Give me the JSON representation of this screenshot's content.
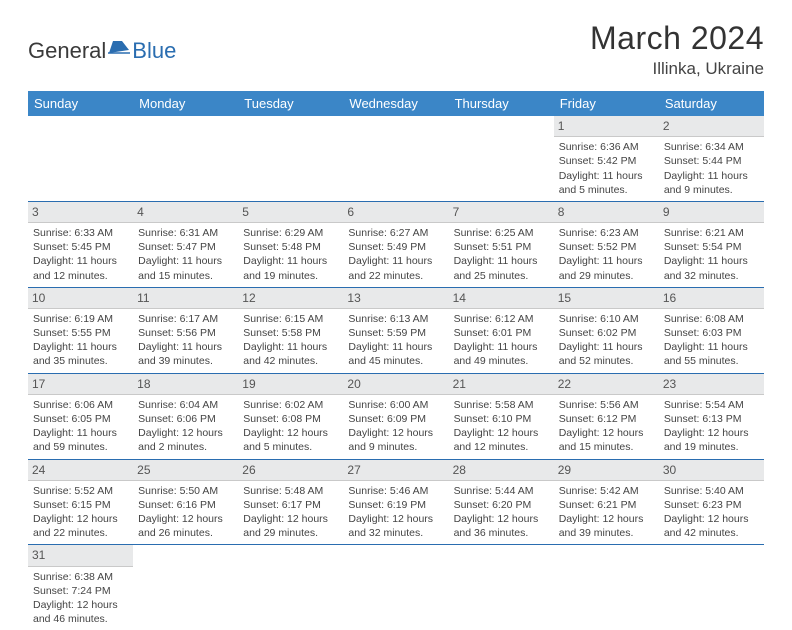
{
  "brand": {
    "part1": "General",
    "part2": "Blue"
  },
  "title": "March 2024",
  "location": "Illinka, Ukraine",
  "colors": {
    "header_bg": "#3b86c7",
    "row_divider": "#2a6db0",
    "daynum_bg": "#e8e9ea",
    "text": "#444444",
    "brand_blue": "#2a6db0"
  },
  "weekdays": [
    "Sunday",
    "Monday",
    "Tuesday",
    "Wednesday",
    "Thursday",
    "Friday",
    "Saturday"
  ],
  "weeks": [
    [
      {
        "empty": true
      },
      {
        "empty": true
      },
      {
        "empty": true
      },
      {
        "empty": true
      },
      {
        "empty": true
      },
      {
        "day": "1",
        "sunrise": "Sunrise: 6:36 AM",
        "sunset": "Sunset: 5:42 PM",
        "daylight1": "Daylight: 11 hours",
        "daylight2": "and 5 minutes."
      },
      {
        "day": "2",
        "sunrise": "Sunrise: 6:34 AM",
        "sunset": "Sunset: 5:44 PM",
        "daylight1": "Daylight: 11 hours",
        "daylight2": "and 9 minutes."
      }
    ],
    [
      {
        "day": "3",
        "sunrise": "Sunrise: 6:33 AM",
        "sunset": "Sunset: 5:45 PM",
        "daylight1": "Daylight: 11 hours",
        "daylight2": "and 12 minutes."
      },
      {
        "day": "4",
        "sunrise": "Sunrise: 6:31 AM",
        "sunset": "Sunset: 5:47 PM",
        "daylight1": "Daylight: 11 hours",
        "daylight2": "and 15 minutes."
      },
      {
        "day": "5",
        "sunrise": "Sunrise: 6:29 AM",
        "sunset": "Sunset: 5:48 PM",
        "daylight1": "Daylight: 11 hours",
        "daylight2": "and 19 minutes."
      },
      {
        "day": "6",
        "sunrise": "Sunrise: 6:27 AM",
        "sunset": "Sunset: 5:49 PM",
        "daylight1": "Daylight: 11 hours",
        "daylight2": "and 22 minutes."
      },
      {
        "day": "7",
        "sunrise": "Sunrise: 6:25 AM",
        "sunset": "Sunset: 5:51 PM",
        "daylight1": "Daylight: 11 hours",
        "daylight2": "and 25 minutes."
      },
      {
        "day": "8",
        "sunrise": "Sunrise: 6:23 AM",
        "sunset": "Sunset: 5:52 PM",
        "daylight1": "Daylight: 11 hours",
        "daylight2": "and 29 minutes."
      },
      {
        "day": "9",
        "sunrise": "Sunrise: 6:21 AM",
        "sunset": "Sunset: 5:54 PM",
        "daylight1": "Daylight: 11 hours",
        "daylight2": "and 32 minutes."
      }
    ],
    [
      {
        "day": "10",
        "sunrise": "Sunrise: 6:19 AM",
        "sunset": "Sunset: 5:55 PM",
        "daylight1": "Daylight: 11 hours",
        "daylight2": "and 35 minutes."
      },
      {
        "day": "11",
        "sunrise": "Sunrise: 6:17 AM",
        "sunset": "Sunset: 5:56 PM",
        "daylight1": "Daylight: 11 hours",
        "daylight2": "and 39 minutes."
      },
      {
        "day": "12",
        "sunrise": "Sunrise: 6:15 AM",
        "sunset": "Sunset: 5:58 PM",
        "daylight1": "Daylight: 11 hours",
        "daylight2": "and 42 minutes."
      },
      {
        "day": "13",
        "sunrise": "Sunrise: 6:13 AM",
        "sunset": "Sunset: 5:59 PM",
        "daylight1": "Daylight: 11 hours",
        "daylight2": "and 45 minutes."
      },
      {
        "day": "14",
        "sunrise": "Sunrise: 6:12 AM",
        "sunset": "Sunset: 6:01 PM",
        "daylight1": "Daylight: 11 hours",
        "daylight2": "and 49 minutes."
      },
      {
        "day": "15",
        "sunrise": "Sunrise: 6:10 AM",
        "sunset": "Sunset: 6:02 PM",
        "daylight1": "Daylight: 11 hours",
        "daylight2": "and 52 minutes."
      },
      {
        "day": "16",
        "sunrise": "Sunrise: 6:08 AM",
        "sunset": "Sunset: 6:03 PM",
        "daylight1": "Daylight: 11 hours",
        "daylight2": "and 55 minutes."
      }
    ],
    [
      {
        "day": "17",
        "sunrise": "Sunrise: 6:06 AM",
        "sunset": "Sunset: 6:05 PM",
        "daylight1": "Daylight: 11 hours",
        "daylight2": "and 59 minutes."
      },
      {
        "day": "18",
        "sunrise": "Sunrise: 6:04 AM",
        "sunset": "Sunset: 6:06 PM",
        "daylight1": "Daylight: 12 hours",
        "daylight2": "and 2 minutes."
      },
      {
        "day": "19",
        "sunrise": "Sunrise: 6:02 AM",
        "sunset": "Sunset: 6:08 PM",
        "daylight1": "Daylight: 12 hours",
        "daylight2": "and 5 minutes."
      },
      {
        "day": "20",
        "sunrise": "Sunrise: 6:00 AM",
        "sunset": "Sunset: 6:09 PM",
        "daylight1": "Daylight: 12 hours",
        "daylight2": "and 9 minutes."
      },
      {
        "day": "21",
        "sunrise": "Sunrise: 5:58 AM",
        "sunset": "Sunset: 6:10 PM",
        "daylight1": "Daylight: 12 hours",
        "daylight2": "and 12 minutes."
      },
      {
        "day": "22",
        "sunrise": "Sunrise: 5:56 AM",
        "sunset": "Sunset: 6:12 PM",
        "daylight1": "Daylight: 12 hours",
        "daylight2": "and 15 minutes."
      },
      {
        "day": "23",
        "sunrise": "Sunrise: 5:54 AM",
        "sunset": "Sunset: 6:13 PM",
        "daylight1": "Daylight: 12 hours",
        "daylight2": "and 19 minutes."
      }
    ],
    [
      {
        "day": "24",
        "sunrise": "Sunrise: 5:52 AM",
        "sunset": "Sunset: 6:15 PM",
        "daylight1": "Daylight: 12 hours",
        "daylight2": "and 22 minutes."
      },
      {
        "day": "25",
        "sunrise": "Sunrise: 5:50 AM",
        "sunset": "Sunset: 6:16 PM",
        "daylight1": "Daylight: 12 hours",
        "daylight2": "and 26 minutes."
      },
      {
        "day": "26",
        "sunrise": "Sunrise: 5:48 AM",
        "sunset": "Sunset: 6:17 PM",
        "daylight1": "Daylight: 12 hours",
        "daylight2": "and 29 minutes."
      },
      {
        "day": "27",
        "sunrise": "Sunrise: 5:46 AM",
        "sunset": "Sunset: 6:19 PM",
        "daylight1": "Daylight: 12 hours",
        "daylight2": "and 32 minutes."
      },
      {
        "day": "28",
        "sunrise": "Sunrise: 5:44 AM",
        "sunset": "Sunset: 6:20 PM",
        "daylight1": "Daylight: 12 hours",
        "daylight2": "and 36 minutes."
      },
      {
        "day": "29",
        "sunrise": "Sunrise: 5:42 AM",
        "sunset": "Sunset: 6:21 PM",
        "daylight1": "Daylight: 12 hours",
        "daylight2": "and 39 minutes."
      },
      {
        "day": "30",
        "sunrise": "Sunrise: 5:40 AM",
        "sunset": "Sunset: 6:23 PM",
        "daylight1": "Daylight: 12 hours",
        "daylight2": "and 42 minutes."
      }
    ],
    [
      {
        "day": "31",
        "sunrise": "Sunrise: 6:38 AM",
        "sunset": "Sunset: 7:24 PM",
        "daylight1": "Daylight: 12 hours",
        "daylight2": "and 46 minutes."
      },
      {
        "empty": true
      },
      {
        "empty": true
      },
      {
        "empty": true
      },
      {
        "empty": true
      },
      {
        "empty": true
      },
      {
        "empty": true
      }
    ]
  ]
}
